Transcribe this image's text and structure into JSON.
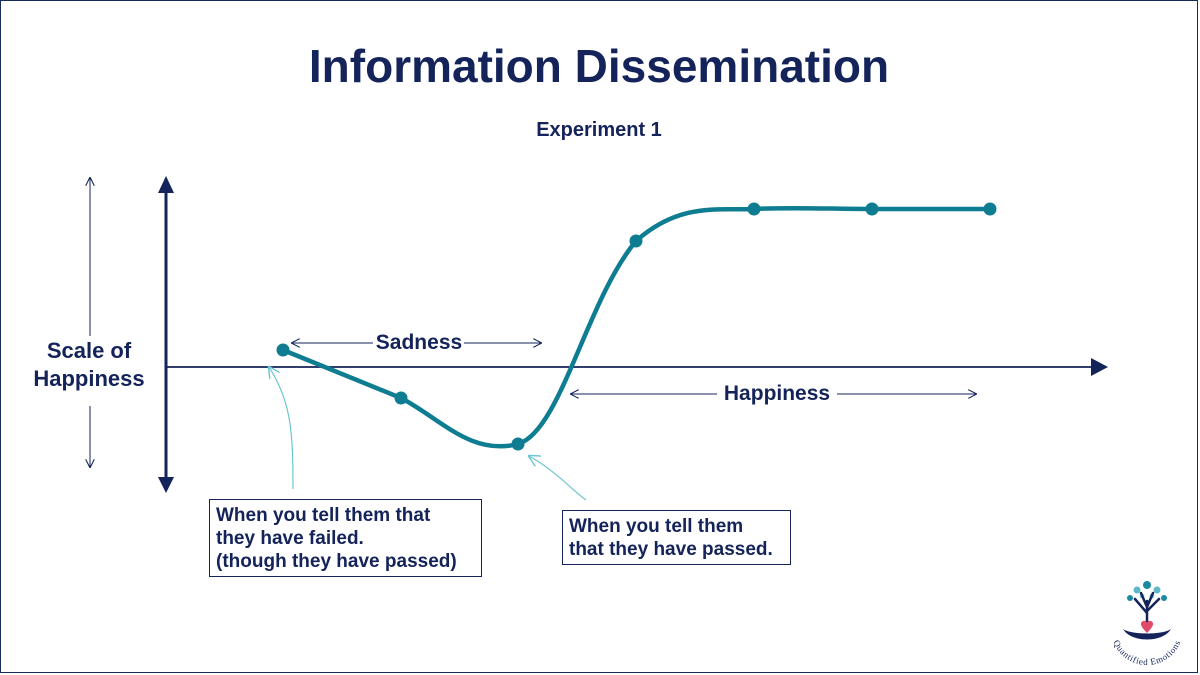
{
  "title": "Information Dissemination",
  "subtitle": "Experiment 1",
  "y_label": [
    "Scale of",
    "Happiness"
  ],
  "region_labels": {
    "sadness": "Sadness",
    "happiness": "Happiness"
  },
  "callouts": {
    "failed": [
      "When you tell them that",
      "they have failed.",
      "(though they have passed)"
    ],
    "passed": [
      "When you tell them",
      "that they have passed."
    ]
  },
  "logo": {
    "text": "Quantified Emotions"
  },
  "colors": {
    "curve": "#0f7d91",
    "axis": "#14235a",
    "callout_arrow": "#6cc6cf"
  }
}
